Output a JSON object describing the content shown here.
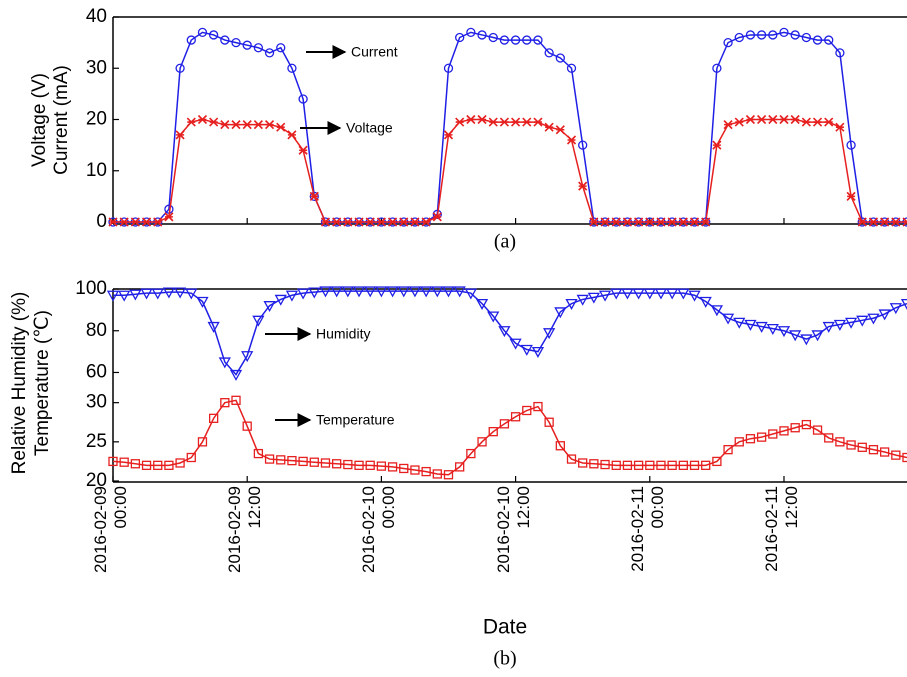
{
  "chart_data": [
    {
      "type": "line",
      "ylabel": [
        "Voltage (V)",
        "Current (mA)"
      ],
      "caption": "(a)",
      "annotations": [
        "Current",
        "Voltage"
      ],
      "x": [
        0,
        1,
        2,
        3,
        4,
        5,
        6,
        7,
        8,
        9,
        10,
        11,
        12,
        13,
        14,
        15,
        16,
        17,
        18,
        19,
        20,
        21,
        22,
        23,
        24,
        25,
        26,
        27,
        28,
        29,
        30,
        31,
        32,
        33,
        34,
        35,
        36,
        37,
        38,
        39,
        40,
        41,
        42,
        43,
        44,
        45,
        46,
        47,
        48,
        49,
        50,
        51,
        52,
        53,
        54,
        55,
        56,
        57,
        58,
        59,
        60,
        61,
        62,
        63,
        64,
        65,
        66,
        67,
        68,
        69,
        70,
        71
      ],
      "xlim": [
        0,
        71
      ],
      "ylim": [
        0,
        40
      ],
      "yticks": [
        0,
        10,
        20,
        30,
        40
      ],
      "series": [
        {
          "name": "Current",
          "color": "#1f1fe6",
          "marker": "circle",
          "values": [
            0,
            0,
            0,
            0,
            0,
            2.5,
            30,
            35.5,
            37,
            36.5,
            35.5,
            35,
            34.5,
            34,
            33,
            34,
            30,
            24,
            5,
            0,
            0,
            0,
            0,
            0,
            0,
            0,
            0,
            0,
            0,
            1.5,
            30,
            36,
            37,
            36.5,
            36,
            35.5,
            35.5,
            35.5,
            35.5,
            33,
            32,
            30,
            15,
            0,
            0,
            0,
            0,
            0,
            0,
            0,
            0,
            0,
            0,
            0,
            30,
            35,
            36,
            36.5,
            36.5,
            36.5,
            37,
            36.5,
            36,
            35.5,
            35.5,
            33,
            15,
            0,
            0,
            0,
            0,
            0
          ]
        },
        {
          "name": "Voltage",
          "color": "#e61f1f",
          "marker": "cross",
          "values": [
            0,
            0,
            0,
            0,
            0,
            1,
            17,
            19.5,
            20,
            19.5,
            19,
            19,
            19,
            19,
            19,
            18.5,
            17,
            14,
            5,
            0,
            0,
            0,
            0,
            0,
            0,
            0,
            0,
            0,
            0,
            1,
            17,
            19.5,
            20,
            20,
            19.5,
            19.5,
            19.5,
            19.5,
            19.5,
            18.5,
            18,
            16,
            7,
            0,
            0,
            0,
            0,
            0,
            0,
            0,
            0,
            0,
            0,
            0,
            15,
            19,
            19.5,
            20,
            20,
            20,
            20,
            20,
            19.5,
            19.5,
            19.5,
            18.5,
            5,
            0,
            0,
            0,
            0,
            0
          ]
        }
      ]
    },
    {
      "type": "line",
      "ylabel": [
        "Relative Humidity (%)",
        "Temperature (℃)"
      ],
      "xlabel": "Date",
      "caption": "(b)",
      "annotations": [
        "Humidity",
        "Temperature"
      ],
      "x": [
        0,
        1,
        2,
        3,
        4,
        5,
        6,
        7,
        8,
        9,
        10,
        11,
        12,
        13,
        14,
        15,
        16,
        17,
        18,
        19,
        20,
        21,
        22,
        23,
        24,
        25,
        26,
        27,
        28,
        29,
        30,
        31,
        32,
        33,
        34,
        35,
        36,
        37,
        38,
        39,
        40,
        41,
        42,
        43,
        44,
        45,
        46,
        47,
        48,
        49,
        50,
        51,
        52,
        53,
        54,
        55,
        56,
        57,
        58,
        59,
        60,
        61,
        62,
        63,
        64,
        65,
        66,
        67,
        68,
        69,
        70,
        71
      ],
      "xlim": [
        0,
        71
      ],
      "xticks": [
        {
          "value": 0,
          "label": "2016-02-09 00:00"
        },
        {
          "value": 12,
          "label": "2016-02-09 12:00"
        },
        {
          "value": 24,
          "label": "2016-02-10 00:00"
        },
        {
          "value": 36,
          "label": "2016-02-10 12:00"
        },
        {
          "value": 48,
          "label": "2016-02-11 00:00"
        },
        {
          "value": 60,
          "label": "2016-02-11 12:00"
        }
      ],
      "ylim": [
        20,
        32
      ],
      "yticks": [
        20,
        25,
        30
      ],
      "y2lim": [
        54,
        100
      ],
      "y2ticks": [
        60,
        80,
        100
      ],
      "series": [
        {
          "name": "Humidity",
          "color": "#1f1fe6",
          "marker": "triangle-down",
          "axis": "y2",
          "values": [
            97,
            97,
            97.5,
            98,
            98,
            98.5,
            98.5,
            98,
            94,
            82,
            65,
            59,
            68,
            85,
            92,
            95,
            97,
            98,
            98.5,
            99,
            99,
            99,
            99,
            99,
            99,
            99,
            99,
            99,
            99,
            99,
            99,
            99,
            98,
            93,
            87,
            80,
            74,
            71,
            70,
            79,
            89,
            93,
            95,
            96,
            97,
            98,
            98,
            98,
            98,
            98,
            98,
            98,
            97,
            94,
            90,
            86,
            84,
            83,
            82,
            81,
            80,
            78,
            76,
            78,
            82,
            83,
            84,
            85,
            86,
            88,
            91,
            93
          ]
        },
        {
          "name": "Temperature",
          "color": "#e61f1f",
          "marker": "square",
          "values": [
            22.5,
            22.4,
            22.2,
            22,
            22,
            22,
            22.3,
            23,
            25,
            28,
            30,
            30.3,
            27,
            23.5,
            22.8,
            22.7,
            22.6,
            22.5,
            22.4,
            22.3,
            22.2,
            22.1,
            22,
            22,
            21.9,
            21.8,
            21.6,
            21.4,
            21.2,
            20.9,
            20.8,
            21.8,
            23.5,
            25,
            26.3,
            27.3,
            28.2,
            29,
            29.5,
            27.5,
            24.5,
            22.8,
            22.3,
            22.2,
            22.1,
            22,
            22,
            22,
            22,
            22,
            22,
            22,
            22,
            22,
            22.5,
            24,
            25,
            25.4,
            25.6,
            26,
            26.4,
            26.8,
            27.2,
            26.5,
            25.5,
            25,
            24.6,
            24.3,
            24,
            23.7,
            23.3,
            23
          ]
        }
      ]
    }
  ]
}
